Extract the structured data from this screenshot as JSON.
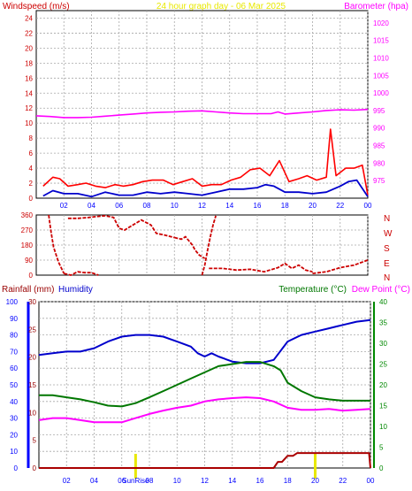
{
  "header": {
    "windspeed_label": "Windspeed (m/s)",
    "title": "24 hour graph day - 06 Mar 2025",
    "barometer_label": "Barometer (hpa)",
    "rainfall_label": "Rainfall (mm)",
    "humidity_label": "Humidity",
    "temperature_label": "Temperature (°C)",
    "dewpoint_label": "Dew Point (°C)",
    "sunrise_label": "SunRise"
  },
  "colors": {
    "windspeed": "#ff0000",
    "windspeed_avg": "#0000cc",
    "barometer": "#ff00ff",
    "title": "#e8e800",
    "direction": "#cc0000",
    "humidity": "#0000cc",
    "temperature": "#007700",
    "dewpoint": "#ff00ff",
    "rainfall": "#aa0000",
    "sun": "#e8e800",
    "axis_blue": "#0000ff",
    "axis_green": "#008800",
    "axis_maroon": "#990000"
  },
  "chart_data": [
    {
      "id": "wind",
      "type": "line",
      "x_ticks": [
        "02",
        "04",
        "06",
        "08",
        "10",
        "12",
        "14",
        "16",
        "18",
        "20",
        "22",
        "00"
      ],
      "x_range": [
        0,
        24
      ],
      "left_axis": {
        "ticks": [
          0,
          2,
          4,
          6,
          8,
          10,
          12,
          14,
          16,
          18,
          20,
          22,
          24
        ],
        "range": [
          0,
          25
        ]
      },
      "right_axis": {
        "ticks": [
          975,
          980,
          985,
          990,
          995,
          1000,
          1005,
          1010,
          1015,
          1020
        ],
        "range": [
          970,
          1023.5
        ]
      },
      "series": [
        {
          "axis": "left",
          "style": "gust",
          "x": [
            0.5,
            1.2,
            1.7,
            2.3,
            3.0,
            3.6,
            4.3,
            5.0,
            5.7,
            6.3,
            7.0,
            7.7,
            8.4,
            9.2,
            9.9,
            10.6,
            11.3,
            12.0,
            12.7,
            13.4,
            14.1,
            14.8,
            15.5,
            16.2,
            16.9,
            17.6,
            18.3,
            19.0,
            19.6,
            20.3,
            21.0,
            21.3,
            21.7,
            22.4,
            23.0,
            23.6,
            24.0
          ],
          "y": [
            1.6,
            2.8,
            2.6,
            1.6,
            1.8,
            2.0,
            1.6,
            1.4,
            1.8,
            1.6,
            1.8,
            2.2,
            2.4,
            2.4,
            1.8,
            2.2,
            2.6,
            1.6,
            1.8,
            1.8,
            2.4,
            2.8,
            3.8,
            4.0,
            3.0,
            5.0,
            2.2,
            2.6,
            3.0,
            2.4,
            2.8,
            9.2,
            3.0,
            4.0,
            4.0,
            4.4,
            0.4
          ]
        },
        {
          "axis": "left",
          "style": "average",
          "x": [
            0.5,
            1.2,
            2.0,
            3.0,
            4.0,
            5.0,
            6.0,
            7.0,
            8.0,
            9.0,
            10.0,
            11.0,
            12.0,
            13.0,
            14.0,
            15.0,
            16.0,
            16.6,
            17.2,
            18.0,
            19.0,
            20.0,
            21.0,
            22.0,
            22.6,
            23.2,
            24.0
          ],
          "y": [
            0.3,
            1.0,
            0.6,
            0.6,
            0.2,
            0.8,
            0.4,
            0.4,
            0.8,
            0.6,
            0.8,
            0.6,
            0.4,
            0.8,
            1.2,
            1.2,
            1.4,
            1.8,
            1.6,
            0.8,
            0.8,
            0.6,
            0.8,
            1.6,
            2.2,
            2.4,
            0.2
          ]
        },
        {
          "axis": "right",
          "style": "barometer",
          "x": [
            0,
            1,
            2,
            3,
            4,
            5,
            6,
            7,
            8,
            9,
            10,
            11,
            12,
            13,
            14,
            15,
            16,
            17,
            17.5,
            18,
            19,
            20,
            21,
            22,
            23,
            24
          ],
          "y": [
            993.5,
            993.3,
            993.0,
            993.0,
            993.1,
            993.4,
            993.7,
            994.0,
            994.3,
            994.5,
            994.6,
            994.8,
            994.9,
            994.6,
            994.3,
            994.1,
            994.1,
            994.1,
            994.6,
            994.0,
            994.3,
            994.6,
            995.0,
            995.2,
            995.1,
            995.3
          ]
        }
      ]
    },
    {
      "id": "direction",
      "type": "scatter",
      "x_range": [
        0,
        24
      ],
      "left_axis": {
        "ticks": [
          0,
          90,
          180,
          270,
          360
        ],
        "range": [
          0,
          360
        ]
      },
      "right_labels": [
        "N",
        "W",
        "S",
        "E",
        "N"
      ],
      "segments": [
        {
          "x": [
            0.9,
            1.05,
            1.25,
            1.6,
            2.0
          ],
          "y": [
            360,
            270,
            170,
            80,
            10
          ]
        },
        {
          "x": [
            2.0,
            2.5,
            3.0,
            3.5,
            4.0,
            4.5
          ],
          "y": [
            10,
            0,
            20,
            15,
            15,
            0
          ]
        },
        {
          "x": [
            2.3,
            3.0,
            3.8,
            4.3,
            5.0,
            5.6,
            6.0,
            6.4,
            7.0,
            7.6,
            8.3,
            8.7,
            9.3,
            10.0
          ],
          "y": [
            340,
            340,
            345,
            350,
            355,
            345,
            280,
            270,
            300,
            330,
            300,
            250,
            240,
            225
          ]
        },
        {
          "x": [
            10.0,
            10.5,
            10.8,
            11.0,
            11.3,
            11.5,
            11.8,
            12.2
          ],
          "y": [
            225,
            215,
            230,
            210,
            180,
            150,
            120,
            100
          ]
        },
        {
          "x": [
            12.0,
            12.2,
            12.4,
            12.6,
            12.8,
            13.0
          ],
          "y": [
            0,
            60,
            150,
            230,
            300,
            355
          ]
        },
        {
          "x": [
            12.5,
            13.5,
            14.5,
            15.5,
            16.5,
            17.5,
            18.0,
            18.5,
            19.0,
            19.5,
            20.0
          ],
          "y": [
            40,
            40,
            30,
            35,
            20,
            45,
            70,
            40,
            60,
            30,
            20
          ]
        },
        {
          "x": [
            20.0,
            21.0,
            22.0,
            23.0,
            24.0
          ],
          "y": [
            10,
            20,
            45,
            60,
            90
          ]
        }
      ]
    },
    {
      "id": "weather",
      "type": "line",
      "x_ticks": [
        "02",
        "04",
        "06",
        "08",
        "10",
        "12",
        "14",
        "16",
        "18",
        "20",
        "22",
        "00"
      ],
      "x_range": [
        0,
        24
      ],
      "humidity_axis": {
        "ticks": [
          0,
          10,
          20,
          30,
          40,
          50,
          60,
          70,
          80,
          90,
          100
        ],
        "range": [
          0,
          100
        ]
      },
      "rainfall_axis": {
        "ticks": [
          0,
          5,
          10,
          15,
          20,
          25,
          30
        ],
        "range": [
          0,
          30
        ]
      },
      "temperature_axis": {
        "ticks": [
          0,
          5,
          10,
          15,
          20,
          25,
          30,
          35,
          40
        ],
        "range": [
          0,
          40
        ]
      },
      "sun_markers": [
        7,
        20
      ],
      "series": [
        {
          "name": "Humidity",
          "axis": "humidity",
          "x": [
            0,
            1,
            2,
            3,
            4,
            5,
            6,
            7,
            8,
            9,
            10,
            11,
            11.5,
            12,
            12.5,
            13,
            14,
            15,
            16,
            17,
            18,
            19,
            20,
            21,
            22,
            23,
            24
          ],
          "y": [
            68,
            69,
            70,
            70,
            72,
            76,
            79,
            80,
            80,
            79,
            76,
            73,
            69,
            67,
            69,
            67,
            64,
            63,
            63,
            65,
            76,
            80,
            82,
            84,
            86,
            88,
            89
          ]
        },
        {
          "name": "Temperature",
          "axis": "temperature",
          "x": [
            0,
            1,
            2,
            3,
            4,
            5,
            6,
            7,
            8,
            9,
            10,
            11,
            12,
            13,
            14,
            15,
            16,
            17,
            17.5,
            18,
            19,
            20,
            21,
            22,
            23,
            24
          ],
          "y": [
            17.5,
            17.5,
            17.0,
            16.5,
            15.8,
            15.0,
            14.8,
            15.6,
            17.0,
            18.5,
            20.0,
            21.5,
            23.0,
            24.5,
            25.0,
            25.5,
            25.5,
            24.5,
            23.5,
            20.5,
            18.5,
            17.0,
            16.5,
            16.2,
            16.2,
            16.2
          ]
        },
        {
          "name": "Dew Point",
          "axis": "temperature",
          "x": [
            0,
            1,
            2,
            3,
            4,
            5,
            6,
            7,
            8,
            9,
            10,
            11,
            12,
            13,
            14,
            15,
            16,
            17,
            18,
            19,
            20,
            21,
            22,
            23,
            24
          ],
          "y": [
            11.5,
            12.0,
            12.0,
            11.5,
            11.0,
            11.0,
            11.0,
            12.0,
            13.0,
            13.8,
            14.5,
            15.0,
            16.0,
            16.5,
            16.8,
            17.0,
            16.8,
            16.0,
            14.5,
            14.0,
            14.0,
            14.2,
            13.8,
            14.0,
            14.2
          ]
        },
        {
          "name": "Rainfall",
          "axis": "rainfall",
          "x": [
            0,
            17.0,
            17.3,
            17.6,
            18.0,
            18.4,
            18.7,
            23.9,
            24.0
          ],
          "y": [
            0,
            0,
            1.1,
            1.1,
            2.2,
            2.2,
            2.7,
            2.7,
            0
          ]
        }
      ]
    }
  ]
}
